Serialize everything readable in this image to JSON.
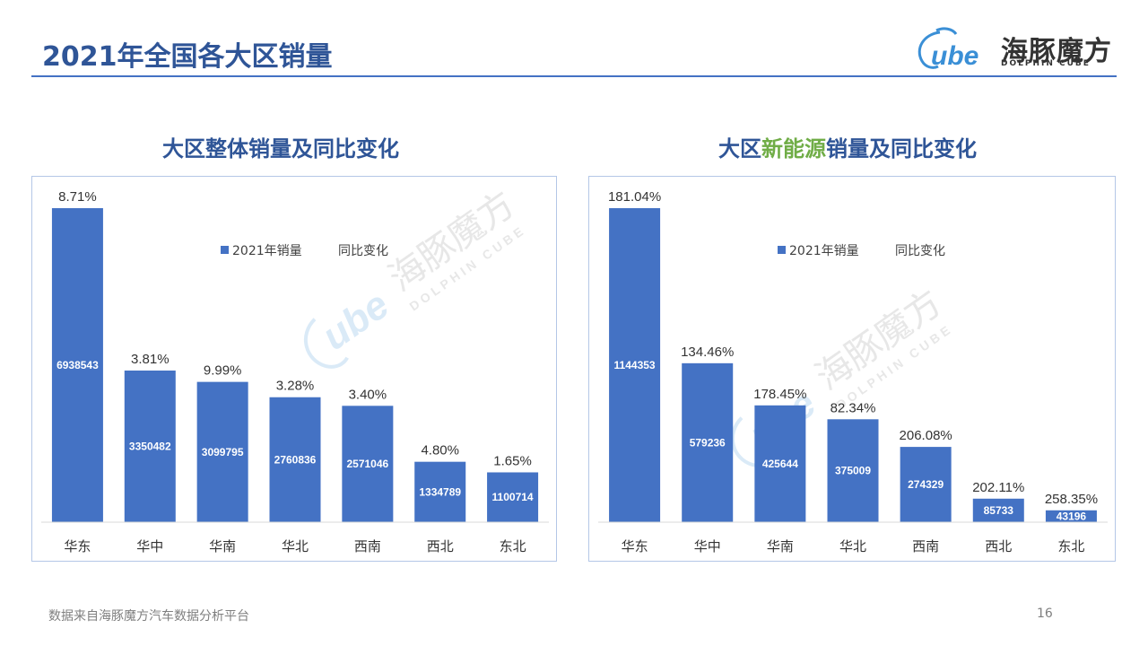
{
  "page": {
    "title": "2021年全国各大区销量",
    "footer_source": "数据来自海豚魔方汽车数据分析平台",
    "page_number": "16"
  },
  "logo": {
    "mark": "ube",
    "brand": "海豚魔方",
    "sub": "DOLPHIN CUBE"
  },
  "colors": {
    "bar": "#4472c4",
    "title": "#2f5597",
    "highlight": "#70ad47"
  },
  "chart_data": [
    {
      "type": "bar",
      "title_parts": [
        "大区整体销量及同比变化"
      ],
      "categories": [
        "华东",
        "华中",
        "华南",
        "华北",
        "西南",
        "西北",
        "东北"
      ],
      "series": [
        {
          "name": "2021年销量",
          "values": [
            6938543,
            3350482,
            3099795,
            2760836,
            2571046,
            1334789,
            1100714
          ]
        },
        {
          "name": "同比变化",
          "values": [
            "8.71%",
            "3.81%",
            "9.99%",
            "3.28%",
            "3.40%",
            "4.80%",
            "1.65%"
          ]
        }
      ],
      "legend": "top-center",
      "grid": false
    },
    {
      "type": "bar",
      "title_parts": [
        "大区",
        "新能源",
        "销量及同比变化"
      ],
      "categories": [
        "华东",
        "华中",
        "华南",
        "华北",
        "西南",
        "西北",
        "东北"
      ],
      "series": [
        {
          "name": "2021年销量",
          "values": [
            1144353,
            579236,
            425644,
            375009,
            274329,
            85733,
            43196
          ]
        },
        {
          "name": "同比变化",
          "values": [
            "181.04%",
            "134.46%",
            "178.45%",
            "82.34%",
            "206.08%",
            "202.11%",
            "258.35%"
          ]
        }
      ],
      "legend": "top-center",
      "grid": false
    }
  ]
}
